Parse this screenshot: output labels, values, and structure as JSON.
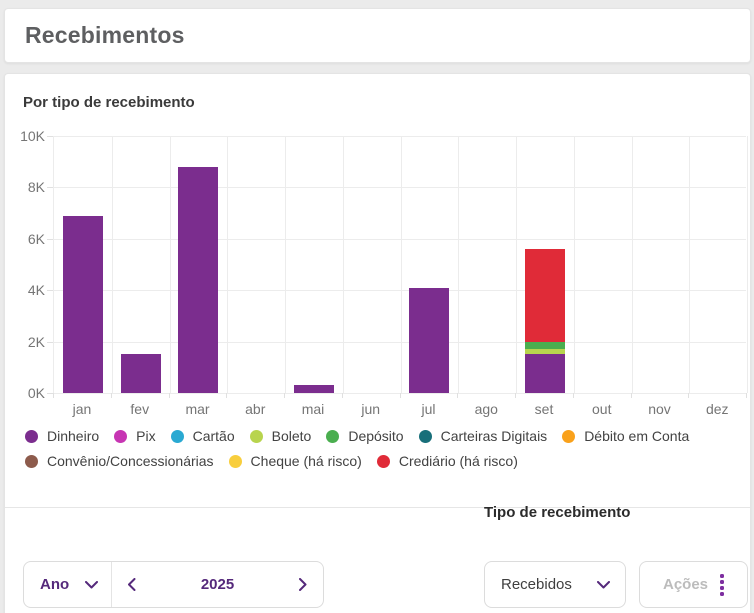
{
  "header": {
    "title": "Recebimentos"
  },
  "chart_data": {
    "type": "bar",
    "stacked": true,
    "title": "Por tipo de recebimento",
    "categories": [
      "jan",
      "fev",
      "mar",
      "abr",
      "mai",
      "jun",
      "jul",
      "ago",
      "set",
      "out",
      "nov",
      "dez"
    ],
    "series": [
      {
        "name": "Dinheiro",
        "color": "#7b2d8e",
        "values": [
          6900,
          1500,
          8800,
          0,
          300,
          0,
          4100,
          0,
          1500,
          0,
          0,
          0
        ]
      },
      {
        "name": "Pix",
        "color": "#c735b3",
        "values": [
          0,
          0,
          0,
          0,
          0,
          0,
          0,
          0,
          0,
          0,
          0,
          0
        ]
      },
      {
        "name": "Cartão",
        "color": "#2aa9d2",
        "values": [
          0,
          0,
          0,
          0,
          0,
          0,
          0,
          0,
          0,
          0,
          0,
          0
        ]
      },
      {
        "name": "Boleto",
        "color": "#b8d44e",
        "values": [
          0,
          0,
          0,
          0,
          0,
          0,
          0,
          0,
          200,
          0,
          0,
          0
        ]
      },
      {
        "name": "Depósito",
        "color": "#4aae4f",
        "values": [
          0,
          0,
          0,
          0,
          0,
          0,
          0,
          0,
          300,
          0,
          0,
          0
        ]
      },
      {
        "name": "Carteiras Digitais",
        "color": "#186f7a",
        "values": [
          0,
          0,
          0,
          0,
          0,
          0,
          0,
          0,
          0,
          0,
          0,
          0
        ]
      },
      {
        "name": "Débito em Conta",
        "color": "#f9a11b",
        "values": [
          0,
          0,
          0,
          0,
          0,
          0,
          0,
          0,
          0,
          0,
          0,
          0
        ]
      },
      {
        "name": "Convênio/Concessionárias",
        "color": "#8d5b4c",
        "values": [
          0,
          0,
          0,
          0,
          0,
          0,
          0,
          0,
          0,
          0,
          0,
          0
        ]
      },
      {
        "name": "Cheque (há risco)",
        "color": "#f8ce3d",
        "values": [
          0,
          0,
          0,
          0,
          0,
          0,
          0,
          0,
          0,
          0,
          0,
          0
        ]
      },
      {
        "name": "Crediário (há risco)",
        "color": "#e02b38",
        "values": [
          0,
          0,
          0,
          0,
          0,
          0,
          0,
          0,
          3600,
          0,
          0,
          0
        ]
      }
    ],
    "ylim": [
      0,
      10000
    ],
    "yticks": [
      {
        "value": 0,
        "label": "0K"
      },
      {
        "value": 2000,
        "label": "2K"
      },
      {
        "value": 4000,
        "label": "4K"
      },
      {
        "value": 6000,
        "label": "6K"
      },
      {
        "value": 8000,
        "label": "8K"
      },
      {
        "value": 10000,
        "label": "10K"
      }
    ],
    "grid": true,
    "legend_position": "bottom"
  },
  "controls": {
    "period_type_value": "Ano",
    "year_value": "2025",
    "filter_label": "Tipo de recebimento",
    "filter_value": "Recebidos",
    "actions_label": "Ações"
  },
  "theme": {
    "accent_purple": "#55297b",
    "bar_purple": "#7b2d8e",
    "risk_red": "#e02b38"
  }
}
